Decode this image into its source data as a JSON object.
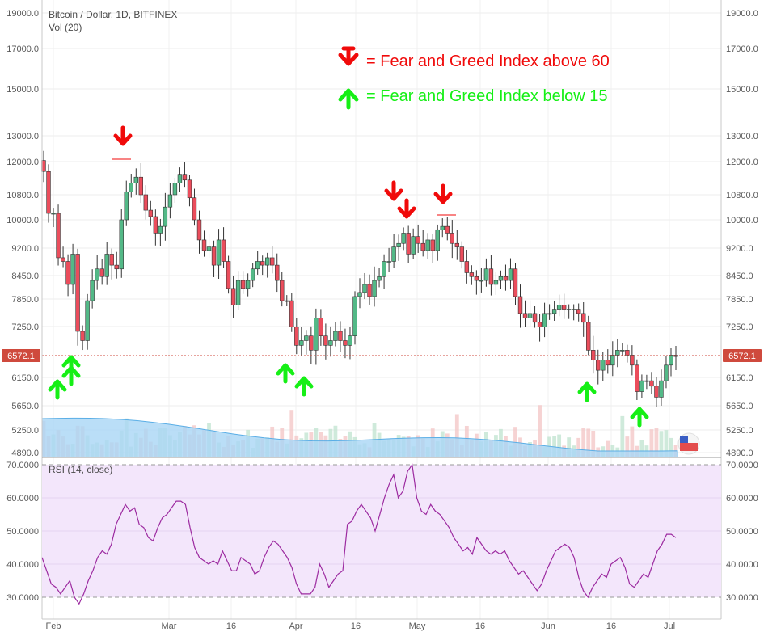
{
  "header": {
    "title": "Bitcoin / Dollar, 1D, BITFINEX",
    "volume_label": "Vol (20)"
  },
  "legend": {
    "fear_label": "= Fear and Greed Index above 60",
    "greed_label": "= Fear and Greed Index below 15",
    "colors": {
      "fear": "#f00a0a",
      "greed": "#16ef16"
    }
  },
  "price_panel": {
    "last_price_label": "6572.1",
    "y_ticks": [
      "19000.0",
      "17000.0",
      "15000.0",
      "13000.0",
      "12000.0",
      "10800.0",
      "10000.0",
      "9200.0",
      "8450.0",
      "7850.0",
      "7250.0",
      "6150.0",
      "5650.0",
      "5250.0",
      "4890.0"
    ],
    "colors": {
      "up": "#53b987",
      "down": "#eb4d5c",
      "volume": "#7ec3ef",
      "last_price": "#cf4a3d"
    }
  },
  "rsi_panel": {
    "label": "RSI (14, close)",
    "y_ticks": [
      "70.0000",
      "60.0000",
      "50.0000",
      "40.0000",
      "30.0000"
    ],
    "colors": {
      "line": "#9c2aa0",
      "band": "#f3e6fb"
    }
  },
  "x_axis": {
    "ticks": [
      "Feb",
      "Mar",
      "16",
      "Apr",
      "16",
      "May",
      "16",
      "Jun",
      "16",
      "Jul"
    ]
  },
  "chart_data": [
    {
      "type": "candlestick",
      "title": "Bitcoin / Dollar, 1D, BITFINEX",
      "x": [
        "Feb",
        "Mar",
        "16",
        "Apr",
        "16",
        "May",
        "16",
        "Jun",
        "16",
        "Jul"
      ],
      "ylim": [
        4890,
        19000
      ],
      "log_scale": true,
      "last_price": 6572.1,
      "close_approx": [
        11600,
        10200,
        10200,
        8900,
        8800,
        8200,
        9000,
        7100,
        6900,
        7800,
        8300,
        8600,
        8400,
        9000,
        8700,
        8600,
        10000,
        10900,
        11200,
        11400,
        10800,
        10300,
        10100,
        9600,
        9800,
        10400,
        10800,
        11200,
        11500,
        11300,
        10700,
        10000,
        9400,
        9100,
        9200,
        8700,
        9400,
        8800,
        8100,
        7700,
        8300,
        8100,
        8300,
        8600,
        8800,
        8700,
        8900,
        8700,
        8300,
        7800,
        7800,
        7200,
        6800,
        6900,
        7000,
        6700,
        7400,
        7000,
        6800,
        6900,
        7100,
        6900,
        6800,
        7000,
        7900,
        8000,
        8200,
        7900,
        8300,
        8400,
        8800,
        8800,
        9200,
        9300,
        9600,
        9000,
        9500,
        9300,
        9100,
        9400,
        9100,
        9700,
        9800,
        9600,
        9300,
        9200,
        8800,
        8500,
        8400,
        8300,
        8300,
        8600,
        8200,
        8300,
        8400,
        8300,
        8600,
        7900,
        7500,
        7400,
        7500,
        7300,
        7200,
        7500,
        7500,
        7600,
        7700,
        7600,
        7600,
        7600,
        7500,
        7300,
        6700,
        6500,
        6300,
        6500,
        6400,
        6600,
        6700,
        6700,
        6600,
        6400,
        5900,
        6100,
        6100,
        6000,
        5800,
        6100,
        6400,
        6600,
        6572
      ]
    },
    {
      "type": "line",
      "title": "RSI (14, close)",
      "series": [
        {
          "values": [
            42,
            38,
            34,
            33,
            31,
            33,
            35,
            30,
            28,
            31,
            35,
            38,
            42,
            44,
            43,
            46,
            52,
            55,
            58,
            56,
            57,
            52,
            51,
            48,
            47,
            51,
            54,
            55,
            57,
            59,
            59,
            58,
            51,
            45,
            42,
            41,
            40,
            41,
            40,
            44,
            41,
            38,
            38,
            42,
            41,
            40,
            37,
            38,
            42,
            45,
            47,
            46,
            44,
            42,
            39,
            34,
            31,
            31,
            31,
            33,
            40,
            37,
            33,
            35,
            37,
            38,
            52,
            53,
            56,
            58,
            56,
            54,
            50,
            55,
            60,
            64,
            67,
            60,
            62,
            68,
            70,
            60,
            56,
            55,
            58,
            56,
            55,
            53,
            51,
            48,
            46,
            44,
            45,
            43,
            48,
            46,
            44,
            43,
            44,
            43,
            44,
            41,
            39,
            37,
            38,
            36,
            34,
            32,
            34,
            38,
            41,
            44,
            45,
            46,
            45,
            42,
            36,
            32,
            30,
            33,
            35,
            37,
            36,
            40,
            41,
            42,
            39,
            34,
            33,
            35,
            37,
            36,
            40,
            44,
            46,
            49,
            49,
            48
          ]
        }
      ],
      "ylim": [
        27,
        70
      ],
      "reference_lines": [
        70,
        30
      ]
    }
  ]
}
